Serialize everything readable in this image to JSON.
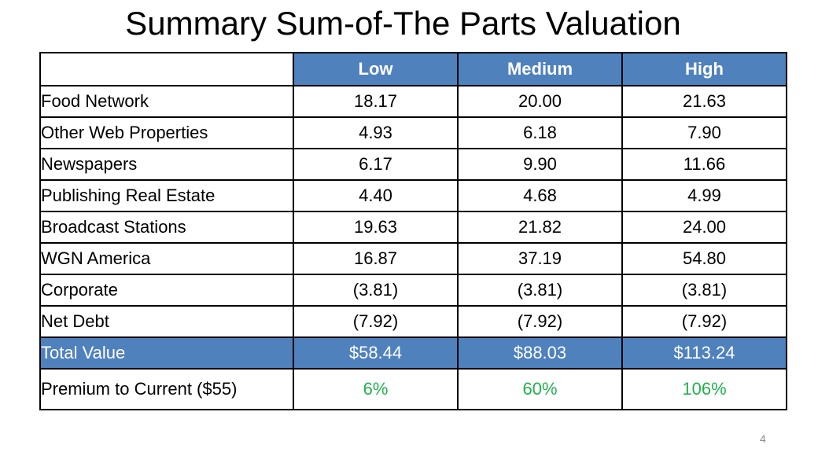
{
  "title": "Summary Sum-of-The Parts Valuation",
  "columns": [
    "Low",
    "Medium",
    "High"
  ],
  "rows": [
    {
      "label": "Food Network",
      "low": "18.17",
      "medium": "20.00",
      "high": "21.63"
    },
    {
      "label": "Other Web Properties",
      "low": "4.93",
      "medium": "6.18",
      "high": "7.90"
    },
    {
      "label": "Newspapers",
      "low": "6.17",
      "medium": "9.90",
      "high": "11.66"
    },
    {
      "label": "Publishing Real Estate",
      "low": "4.40",
      "medium": "4.68",
      "high": "4.99"
    },
    {
      "label": "Broadcast Stations",
      "low": "19.63",
      "medium": "21.82",
      "high": "24.00"
    },
    {
      "label": "WGN America",
      "low": "16.87",
      "medium": "37.19",
      "high": "54.80"
    },
    {
      "label": "Corporate",
      "low": "(3.81)",
      "medium": "(3.81)",
      "high": "(3.81)"
    },
    {
      "label": "Net Debt",
      "low": "(7.92)",
      "medium": "(7.92)",
      "high": "(7.92)"
    }
  ],
  "total": {
    "label": "Total Value",
    "low": "$58.44",
    "medium": "$88.03",
    "high": "$113.24"
  },
  "premium": {
    "label": "Premium to Current ($55)",
    "low": "6%",
    "medium": "60%",
    "high": "106%"
  },
  "page_number": "4",
  "colors": {
    "header_fill": "#4f81bd",
    "header_text": "#ffffff",
    "premium_text": "#22b14c"
  }
}
